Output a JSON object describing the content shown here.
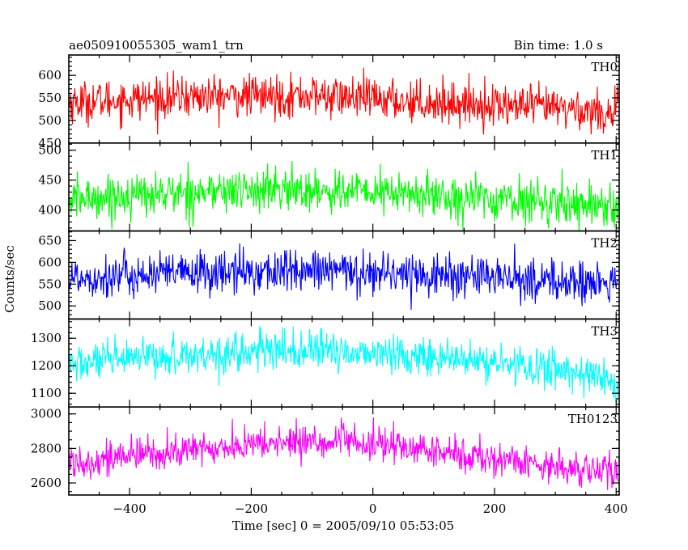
{
  "header": {
    "title": "ae050910055305_wam1_trn",
    "bin_time": "Bin time: 1.0 s"
  },
  "axes": {
    "ylabel": "Counts/sec",
    "xlabel": "Time [sec] 0 = 2005/09/10 05:53:05"
  },
  "chart_data": {
    "type": "line",
    "x_range": [
      -500,
      405
    ],
    "x_ticks": [
      -400,
      -200,
      0,
      200,
      400
    ],
    "x_tick_labels": [
      "−400",
      "−200",
      "0",
      "200",
      "400"
    ],
    "x_minor_step": 50,
    "bin_time_s": 1.0,
    "panels": [
      {
        "name": "TH0",
        "color": "#ff0000",
        "ylim": [
          450,
          645
        ],
        "yticks": [
          450,
          500,
          550,
          600
        ],
        "yminor": 10,
        "trend": [
          [
            -500,
            540
          ],
          [
            -300,
            553
          ],
          [
            -100,
            555
          ],
          [
            100,
            540
          ],
          [
            300,
            528
          ],
          [
            405,
            515
          ]
        ],
        "noise_sd": 23
      },
      {
        "name": "TH1",
        "color": "#00ff00",
        "ylim": [
          365,
          512
        ],
        "yticks": [
          400,
          450,
          500
        ],
        "yminor": 10,
        "trend": [
          [
            -500,
            418
          ],
          [
            -300,
            430
          ],
          [
            -150,
            434
          ],
          [
            0,
            430
          ],
          [
            200,
            418
          ],
          [
            405,
            408
          ]
        ],
        "noise_sd": 18
      },
      {
        "name": "TH2",
        "color": "#0000ff",
        "ylim": [
          470,
          672
        ],
        "yticks": [
          500,
          550,
          600,
          650
        ],
        "yminor": 10,
        "trend": [
          [
            -500,
            565
          ],
          [
            -300,
            575
          ],
          [
            -150,
            580
          ],
          [
            0,
            578
          ],
          [
            200,
            565
          ],
          [
            405,
            548
          ]
        ],
        "noise_sd": 25
      },
      {
        "name": "TH3",
        "color": "#00ffff",
        "ylim": [
          1050,
          1370
        ],
        "yticks": [
          1100,
          1200,
          1300
        ],
        "yminor": 20,
        "trend": [
          [
            -500,
            1205
          ],
          [
            -300,
            1240
          ],
          [
            -150,
            1255
          ],
          [
            0,
            1248
          ],
          [
            200,
            1210
          ],
          [
            350,
            1175
          ],
          [
            405,
            1130
          ]
        ],
        "noise_sd": 35
      },
      {
        "name": "TH0123",
        "color": "#ff00ff",
        "ylim": [
          2530,
          3040
        ],
        "yticks": [
          2600,
          2800,
          3000
        ],
        "yminor": 50,
        "trend": [
          [
            -500,
            2720
          ],
          [
            -300,
            2790
          ],
          [
            -150,
            2835
          ],
          [
            -50,
            2840
          ],
          [
            50,
            2805
          ],
          [
            200,
            2740
          ],
          [
            350,
            2680
          ],
          [
            405,
            2650
          ]
        ],
        "noise_sd": 50
      }
    ]
  }
}
